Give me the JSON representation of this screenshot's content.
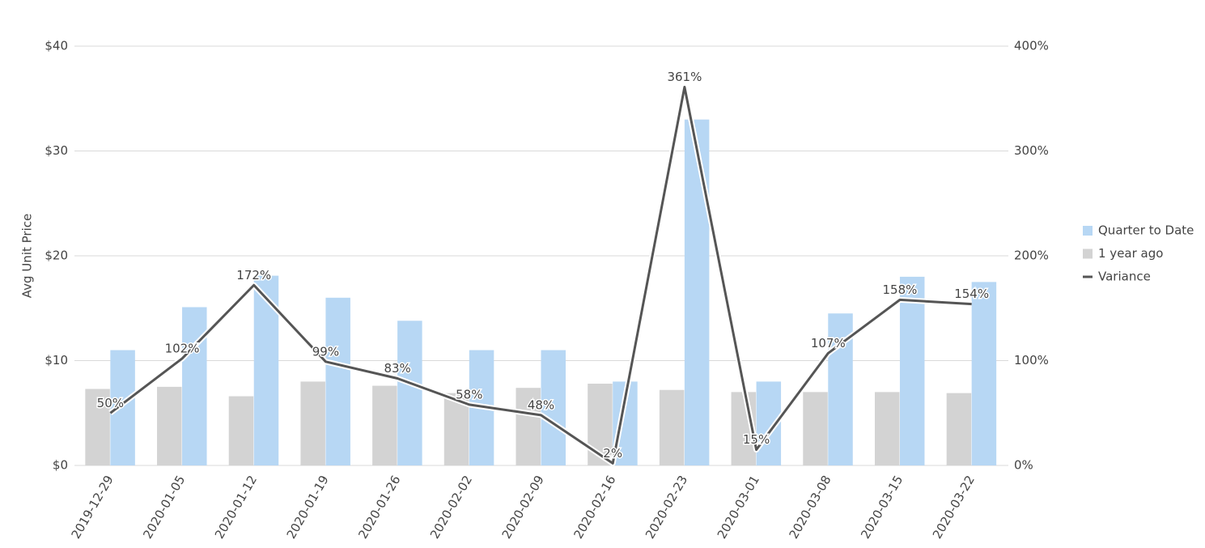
{
  "chart_data": {
    "type": "combo",
    "y_label": "Avg Unit Price",
    "categories": [
      "2019-12-29",
      "2020-01-05",
      "2020-01-12",
      "2020-01-19",
      "2020-01-26",
      "2020-02-02",
      "2020-02-09",
      "2020-02-16",
      "2020-02-23",
      "2020-03-01",
      "2020-03-08",
      "2020-03-15",
      "2020-03-22"
    ],
    "series": [
      {
        "name": "Quarter to Date",
        "type": "bar",
        "color": "#b7d7f4",
        "values": [
          11,
          15.1,
          18.1,
          16,
          13.8,
          11,
          11,
          8,
          33,
          8,
          14.5,
          18,
          17.5
        ]
      },
      {
        "name": "1 year ago",
        "type": "bar",
        "color": "#d3d3d3",
        "values": [
          7.3,
          7.5,
          6.6,
          8,
          7.6,
          6.9,
          7.4,
          7.8,
          7.2,
          7,
          7,
          7,
          6.9
        ]
      },
      {
        "name": "Variance",
        "type": "line",
        "axis": "y2",
        "color": "#555555",
        "values": [
          50,
          102,
          172,
          99,
          83,
          58,
          48,
          2,
          361,
          15,
          107,
          158,
          154
        ],
        "value_labels": [
          "50%",
          "102%",
          "172%",
          "99%",
          "83%",
          "58%",
          "48%",
          "2%",
          "361%",
          "15%",
          "107%",
          "158%",
          "154%"
        ]
      }
    ],
    "ylim": [
      0,
      40
    ],
    "yticks": [
      {
        "value": 0,
        "label": "$0"
      },
      {
        "value": 10,
        "label": "$10"
      },
      {
        "value": 20,
        "label": "$20"
      },
      {
        "value": 30,
        "label": "$30"
      },
      {
        "value": 40,
        "label": "$40"
      }
    ],
    "y2lim": [
      0,
      400
    ],
    "y2ticks": [
      {
        "value": 0,
        "label": "0%"
      },
      {
        "value": 100,
        "label": "100%"
      },
      {
        "value": 200,
        "label": "200%"
      },
      {
        "value": 300,
        "label": "300%"
      },
      {
        "value": 400,
        "label": "400%"
      }
    ],
    "grid": true
  }
}
